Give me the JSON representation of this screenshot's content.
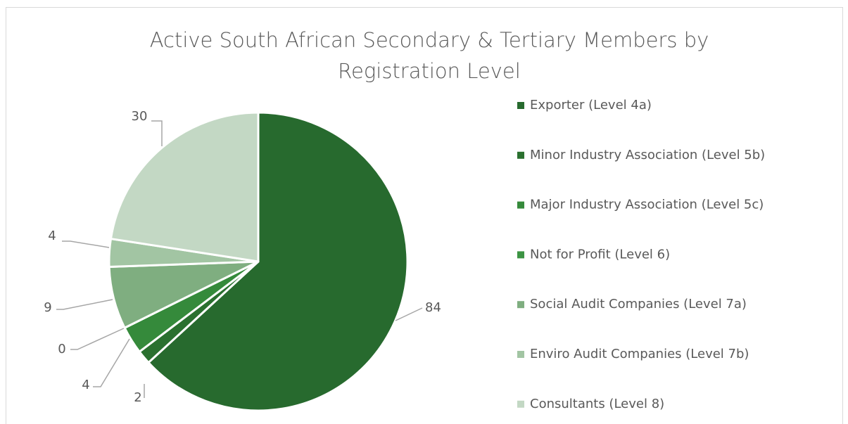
{
  "chart_data": {
    "type": "pie",
    "title": "Active South African Secondary & Tertiary Members by Registration Level",
    "categories": [
      "Exporter (Level 4a)",
      "Minor Industry Association (Level 5b)",
      "Major Industry Association (Level 5c)",
      "Not for Profit (Level 6)",
      "Social Audit Companies (Level 7a)",
      "Enviro Audit Companies (Level 7b)",
      "Consultants (Level 8)"
    ],
    "values": [
      84,
      2,
      4,
      0,
      9,
      4,
      30
    ],
    "colors": [
      "#276a2e",
      "#2a702f",
      "#358a3b",
      "#3c9443",
      "#7fae80",
      "#a2c5a3",
      "#c3d8c4"
    ],
    "legend": "right"
  }
}
